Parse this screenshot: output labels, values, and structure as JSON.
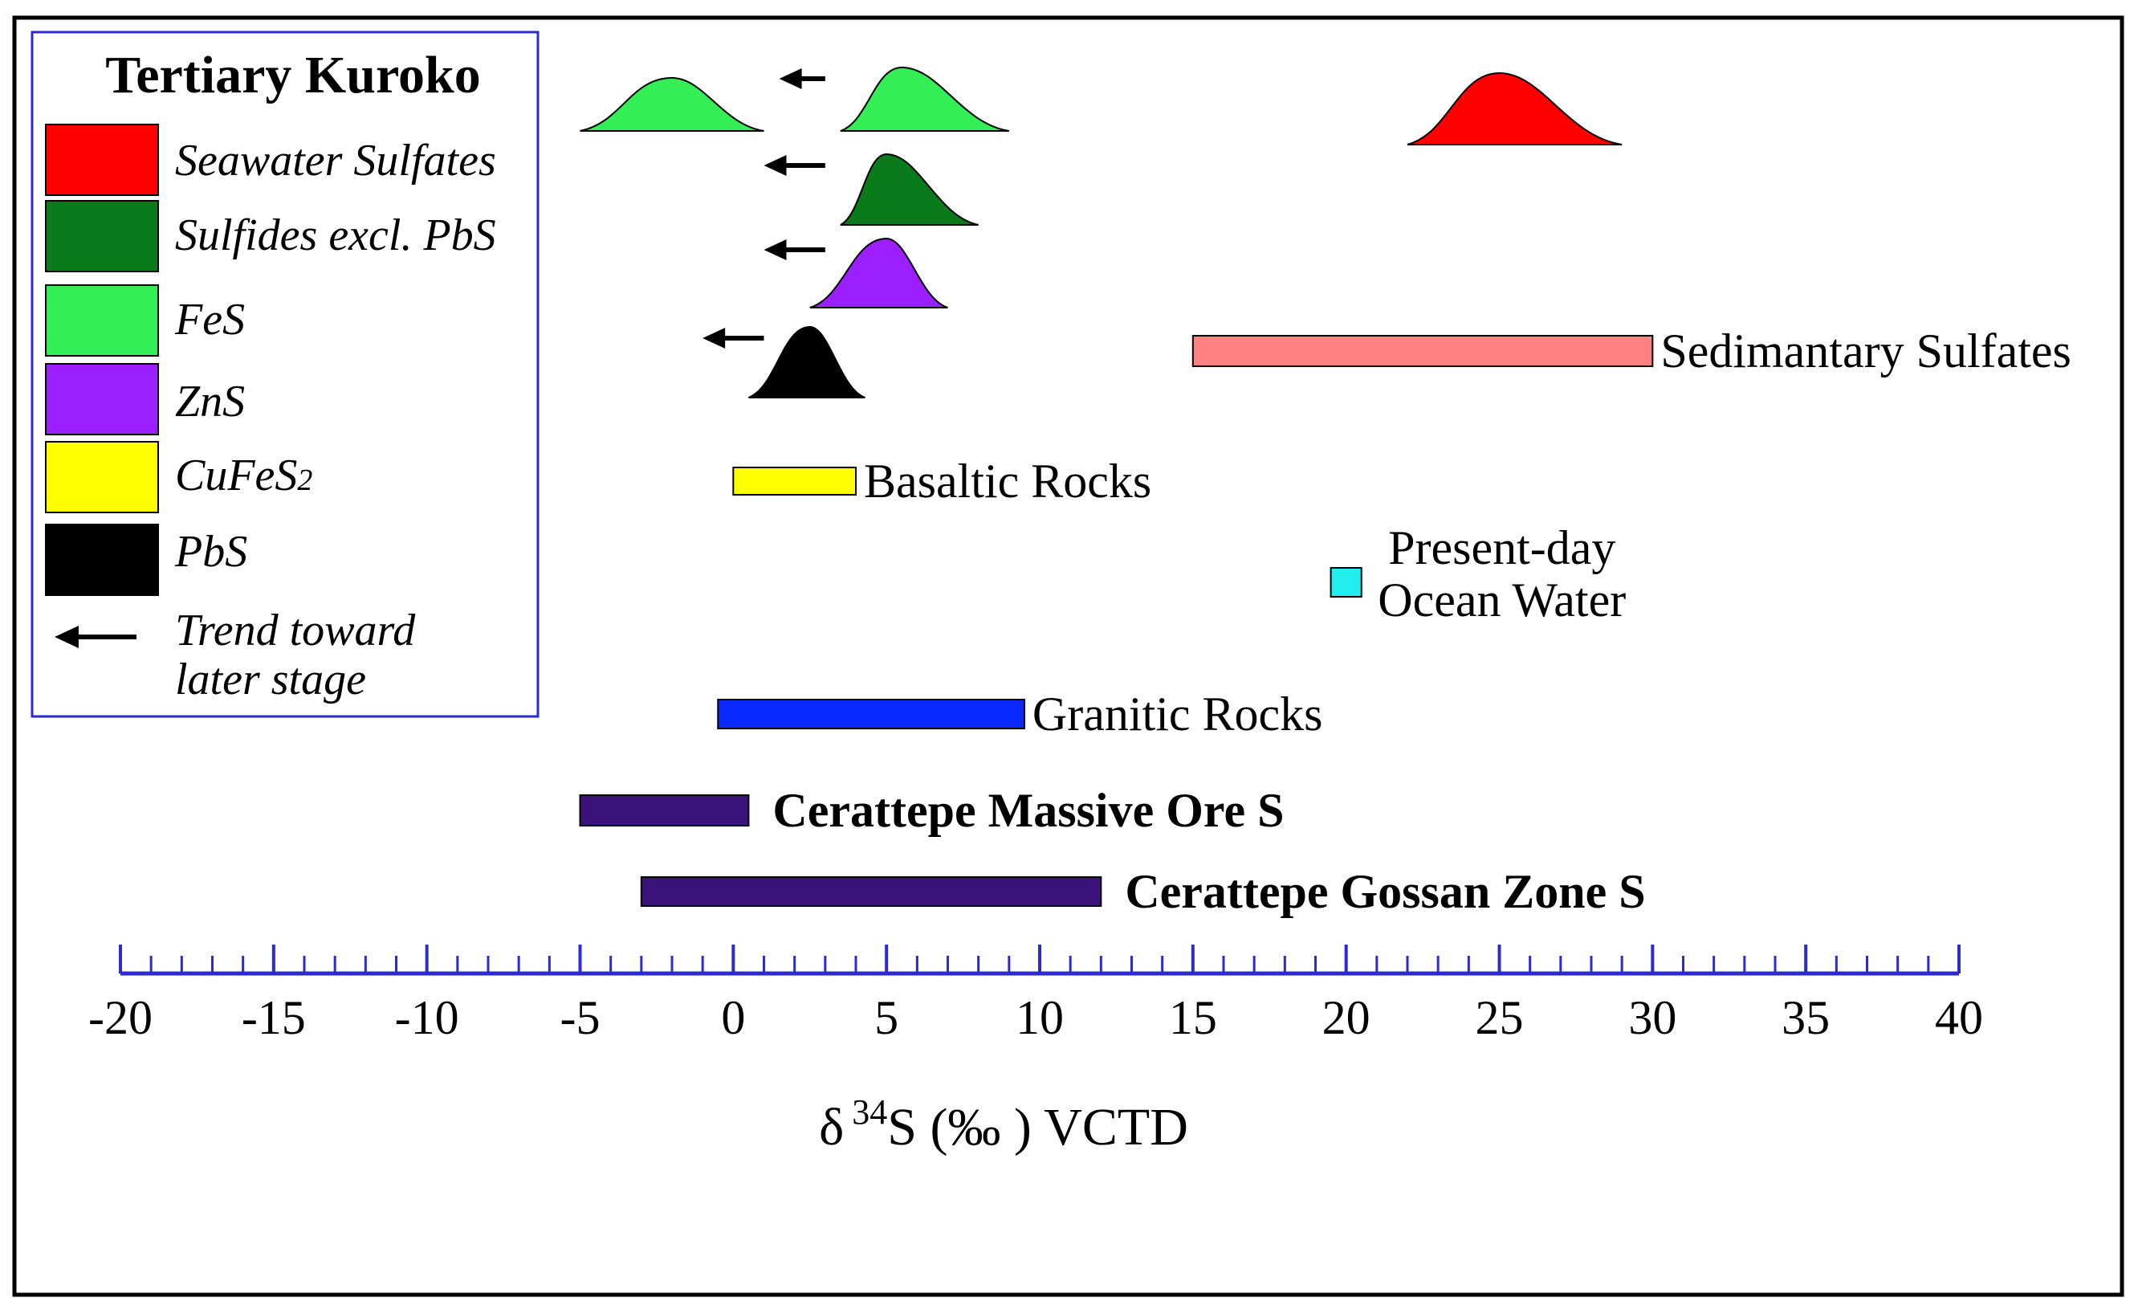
{
  "chart_data": {
    "type": "range",
    "xlabel": "δ 34S (‰ ) VCTD",
    "xlabel_parts": {
      "delta": "δ",
      "superscript": "34",
      "rest": "S (‰ ) VCTD"
    },
    "xlim": [
      -20,
      40
    ],
    "major_ticks": [
      -20,
      -15,
      -10,
      -5,
      0,
      5,
      10,
      15,
      20,
      25,
      30,
      35,
      40
    ],
    "tick_labels": [
      "-20",
      "-15",
      "-10",
      "-5",
      "0",
      "5",
      "10",
      "15",
      "20",
      "25",
      "30",
      "35",
      "40"
    ],
    "minor_tick_step": 1,
    "colors": {
      "axis": "#2b2bd0",
      "seawater_sulfates": "#ff0000",
      "sulfides_excl_pbs": "#0b7a1a",
      "fes": "#33ee55",
      "zns": "#9b1fff",
      "cufes2": "#ffff00",
      "pbs": "#000000",
      "sedimentary_sulfates": "#ff8080",
      "ocean_water": "#22eeee",
      "granitic_rocks": "#0a2aff",
      "cerattepe": "#3c137a"
    },
    "legend": {
      "title": "Tertiary Kuroko",
      "items": [
        {
          "key": "seawater_sulfates",
          "label": "Seawater Sulfates",
          "color": "#ff0000"
        },
        {
          "key": "sulfides_excl_pbs",
          "label": "Sulfides excl. PbS",
          "color": "#0b7a1a"
        },
        {
          "key": "fes",
          "label": "FeS",
          "color": "#33ee55"
        },
        {
          "key": "zns",
          "label": "ZnS",
          "color": "#9b1fff"
        },
        {
          "key": "cufes2",
          "label_main": "CuFeS",
          "label_sub": "2",
          "color": "#ffff00"
        },
        {
          "key": "pbs",
          "label": "PbS",
          "color": "#000000"
        }
      ],
      "trend_label_line1": "Trend toward",
      "trend_label_line2": "later stage"
    },
    "distributions": [
      {
        "name": "FeS (early)",
        "key": "fes",
        "x_min": -5,
        "x_max": 1,
        "peak": -2,
        "trend_arrow": false
      },
      {
        "name": "FeS",
        "key": "fes",
        "x_min": 3.5,
        "x_max": 9,
        "peak": 5.5,
        "trend_arrow": true,
        "arrow_x": [
          3,
          1.5
        ]
      },
      {
        "name": "Seawater Sulfates",
        "key": "seawater_sulfates",
        "x_min": 22,
        "x_max": 29,
        "peak": 25,
        "trend_arrow": false
      },
      {
        "name": "Sulfides excl. PbS",
        "key": "sulfides_excl_pbs",
        "x_min": 3.5,
        "x_max": 8,
        "peak": 5,
        "trend_arrow": true,
        "arrow_x": [
          3,
          1
        ]
      },
      {
        "name": "ZnS",
        "key": "zns",
        "x_min": 2.5,
        "x_max": 7,
        "peak": 5,
        "trend_arrow": true,
        "arrow_x": [
          3,
          1
        ]
      },
      {
        "name": "PbS",
        "key": "pbs",
        "x_min": 0.5,
        "x_max": 4.3,
        "peak": 2.5,
        "trend_arrow": true,
        "arrow_x": [
          1,
          -1
        ]
      }
    ],
    "ranges": [
      {
        "name": "Sedimantary Sulfates",
        "label": "Sedimantary Sulfates",
        "key": "sedimentary_sulfates",
        "x_min": 15,
        "x_max": 30,
        "bold": false
      },
      {
        "name": "Basaltic Rocks",
        "label": "Basaltic Rocks",
        "key": "cufes2",
        "x_min": 0,
        "x_max": 4,
        "bold": false
      },
      {
        "name": "Present-day Ocean Water",
        "label_line1": "Present-day",
        "label_line2": "Ocean Water",
        "key": "ocean_water",
        "x_min": 19.5,
        "x_max": 20.5,
        "bold": false
      },
      {
        "name": "Granitic Rocks",
        "label": "Granitic Rocks",
        "key": "granitic_rocks",
        "x_min": -0.5,
        "x_max": 9.5,
        "bold": false
      },
      {
        "name": "Cerattepe Massive Ore S",
        "label": "Cerattepe Massive Ore S",
        "key": "cerattepe",
        "x_min": -5,
        "x_max": 0.5,
        "bold": true
      },
      {
        "name": "Cerattepe Gossan Zone S",
        "label": "Cerattepe Gossan Zone S",
        "key": "cerattepe",
        "x_min": -3,
        "x_max": 12,
        "bold": true
      }
    ]
  }
}
